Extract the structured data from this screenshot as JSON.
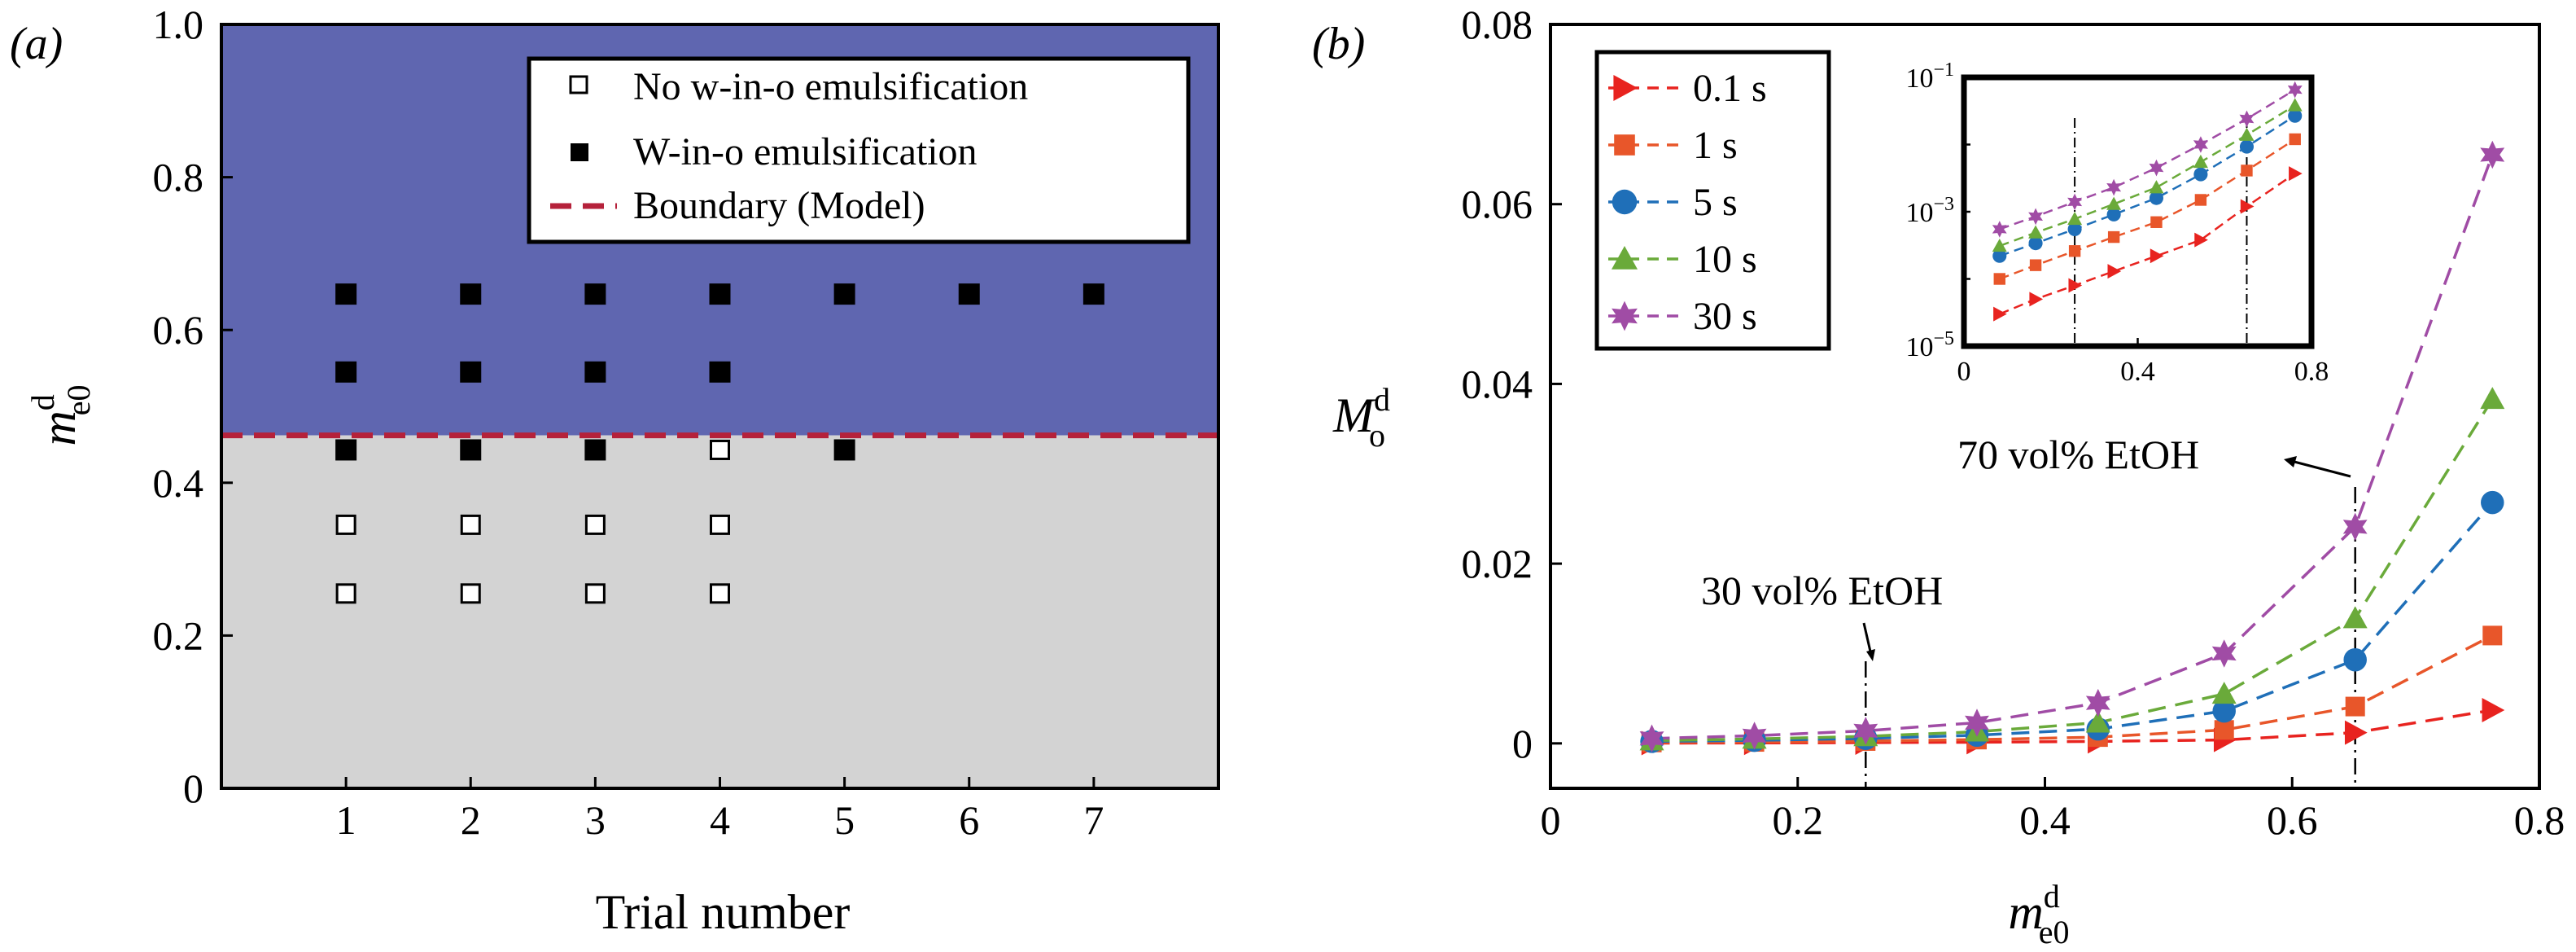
{
  "colors": {
    "above_region": "#5f66b0",
    "below_region": "#d3d3d3",
    "boundary": "#b5213a",
    "series": [
      "#e8231f",
      "#e8562a",
      "#1f6fb8",
      "#6aaa3a",
      "#a04ca5"
    ]
  },
  "chart_data": [
    {
      "panel_label": "(a)",
      "type": "scatter",
      "xlabel": "Trial number",
      "ylabel_base": "m",
      "ylabel_sup": "d",
      "ylabel_sub": "e0",
      "xlim": [
        0,
        8
      ],
      "ylim": [
        0,
        1.0
      ],
      "xticks": [
        1,
        2,
        3,
        4,
        5,
        6,
        7
      ],
      "yticks": [
        "0",
        "0.2",
        "0.4",
        "0.6",
        "0.8",
        "1.0"
      ],
      "ytick_values": [
        0,
        0.2,
        0.4,
        0.6,
        0.8,
        1.0
      ],
      "boundary_y": 0.462,
      "legend": {
        "position": "top-right",
        "entries": [
          "No w-in-o emulsification",
          "W-in-o emulsification",
          "Boundary (Model)"
        ]
      },
      "series": [
        {
          "name": "No w-in-o emulsification",
          "marker": "open-square",
          "points": [
            [
              1,
              0.255
            ],
            [
              1,
              0.345
            ],
            [
              2,
              0.255
            ],
            [
              2,
              0.345
            ],
            [
              3,
              0.255
            ],
            [
              3,
              0.345
            ],
            [
              4,
              0.255
            ],
            [
              4,
              0.345
            ],
            [
              4,
              0.443
            ]
          ]
        },
        {
          "name": "W-in-o emulsification",
          "marker": "filled-square",
          "points": [
            [
              1,
              0.443
            ],
            [
              1,
              0.545
            ],
            [
              1,
              0.647
            ],
            [
              2,
              0.443
            ],
            [
              2,
              0.545
            ],
            [
              2,
              0.647
            ],
            [
              3,
              0.443
            ],
            [
              3,
              0.545
            ],
            [
              3,
              0.647
            ],
            [
              4,
              0.545
            ],
            [
              4,
              0.647
            ],
            [
              5,
              0.443
            ],
            [
              5,
              0.647
            ],
            [
              6,
              0.647
            ],
            [
              7,
              0.647
            ]
          ]
        }
      ]
    },
    {
      "panel_label": "(b)",
      "type": "line",
      "xlabel_base": "m",
      "xlabel_sup": "d",
      "xlabel_sub": "e0",
      "ylabel_base": "M",
      "ylabel_sup": "d",
      "ylabel_sub": "o",
      "xlim": [
        0,
        0.8
      ],
      "ylim": [
        -0.005,
        0.08
      ],
      "xticks": [
        "0",
        "0.2",
        "0.4",
        "0.6",
        "0.8"
      ],
      "xtick_values": [
        0,
        0.2,
        0.4,
        0.6,
        0.8
      ],
      "yticks": [
        "0",
        "0.02",
        "0.04",
        "0.06",
        "0.08"
      ],
      "ytick_values": [
        0,
        0.02,
        0.04,
        0.06,
        0.08
      ],
      "x": [
        0.082,
        0.165,
        0.255,
        0.345,
        0.443,
        0.545,
        0.651,
        0.762
      ],
      "legend": {
        "position": "top-left"
      },
      "series": [
        {
          "name": "0.1 s",
          "marker": "triangle-right",
          "values": [
            3e-05,
            5e-05,
            8e-05,
            0.00013,
            0.00022,
            0.00038,
            0.0012,
            0.0037
          ]
        },
        {
          "name": "1 s",
          "marker": "square",
          "values": [
            0.0001,
            0.00016,
            0.00026,
            0.00042,
            0.0007,
            0.0015,
            0.0041,
            0.012
          ]
        },
        {
          "name": "5 s",
          "marker": "circle",
          "values": [
            0.00022,
            0.00034,
            0.00055,
            0.00091,
            0.0016,
            0.0036,
            0.0093,
            0.0268
          ]
        },
        {
          "name": "10 s",
          "marker": "triangle-up",
          "values": [
            0.00031,
            0.00049,
            0.00078,
            0.0013,
            0.0023,
            0.0055,
            0.0139,
            0.0383
          ]
        },
        {
          "name": "30 s",
          "marker": "star",
          "values": [
            0.00055,
            0.00085,
            0.0014,
            0.0023,
            0.0045,
            0.01,
            0.0241,
            0.0655
          ]
        }
      ],
      "annotations": [
        {
          "text": "30 vol% EtOH",
          "x": 0.255
        },
        {
          "text": "70 vol% EtOH",
          "x": 0.651
        }
      ],
      "inset": {
        "yscale": "log",
        "xlim": [
          0,
          0.8
        ],
        "ylim": [
          1e-05,
          0.1
        ],
        "xticks": [
          "0",
          "0.4",
          "0.8"
        ],
        "xtick_values": [
          0,
          0.4,
          0.8
        ],
        "ytick_base": "10",
        "ytick_exponents": [
          "−5",
          "−3",
          "−1"
        ],
        "ytick_values": [
          1e-05,
          0.001,
          0.1
        ],
        "vlines": [
          0.255,
          0.651
        ]
      }
    }
  ]
}
